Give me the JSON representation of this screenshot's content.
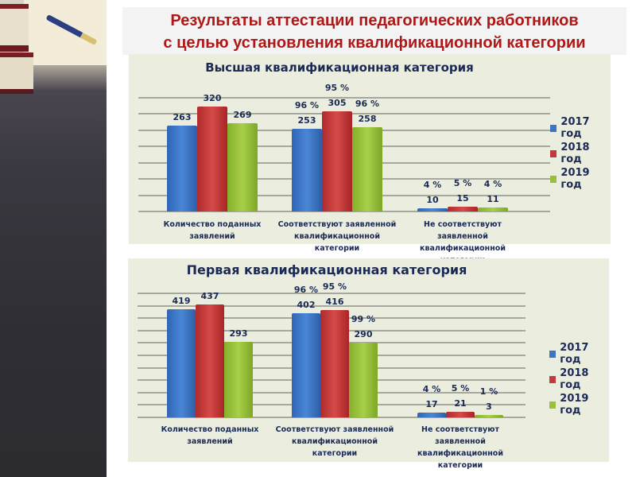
{
  "page": {
    "title_line1": "Результаты аттестации педагогических работников",
    "title_line2": "с целью установления квалификационной  категории",
    "colors": {
      "title": "#b01818",
      "text": "#1a2a55",
      "panel": "#ebeddf",
      "series": [
        "#3a75c8",
        "#c43a3a",
        "#98c13a"
      ]
    }
  },
  "chart_data": [
    {
      "type": "bar",
      "title": "Высшая квалификационная категория",
      "categories": [
        "Количество поданных заявлений",
        "Соответствуют заявленной квалификационной категории",
        "Не соответствуют заявленной квалификационной категории"
      ],
      "categories_display": [
        [
          "Количество поданных заявлений"
        ],
        [
          "Соответствуют заявленной",
          "квалификационной категории"
        ],
        [
          "Не соответствуют заявленной",
          "квалификационной категории"
        ]
      ],
      "series": [
        {
          "name": "2017 год",
          "values": [
            263,
            253,
            10
          ],
          "percent_labels": [
            "",
            "96 %",
            "4 %"
          ]
        },
        {
          "name": "2018 год",
          "values": [
            320,
            305,
            15
          ],
          "percent_labels": [
            "",
            "95 %",
            "5 %"
          ]
        },
        {
          "name": "2019 год",
          "values": [
            269,
            258,
            11
          ],
          "percent_labels": [
            "",
            "96 %",
            "4 %"
          ]
        }
      ],
      "xlabel": "",
      "ylabel": "",
      "ylim": [
        0,
        350
      ],
      "grid": true,
      "legend_position": "right"
    },
    {
      "type": "bar",
      "title": "Первая квалификационная категория",
      "categories": [
        "Количество поданных заявлений",
        "Соответствуют заявленной квалификационной категории",
        "Не соответствуют заявленной квалификационной категории"
      ],
      "categories_display": [
        [
          "Количество поданных",
          "заявлений"
        ],
        [
          "Соответствуют заявленной",
          "квалификационной категории"
        ],
        [
          "Не соответствуют заявленной",
          "квалификационной категории"
        ]
      ],
      "series": [
        {
          "name": "2017 год",
          "values": [
            419,
            402,
            17
          ],
          "percent_labels": [
            "",
            "96 %",
            "4 %"
          ]
        },
        {
          "name": "2018 год",
          "values": [
            437,
            416,
            21
          ],
          "percent_labels": [
            "",
            "95 %",
            "5 %"
          ]
        },
        {
          "name": "2019 год",
          "values": [
            293,
            290,
            3
          ],
          "percent_labels": [
            "",
            "99 %",
            "1 %"
          ]
        }
      ],
      "xlabel": "",
      "ylabel": "",
      "ylim": [
        0,
        480
      ],
      "grid": true,
      "legend_position": "right"
    }
  ]
}
